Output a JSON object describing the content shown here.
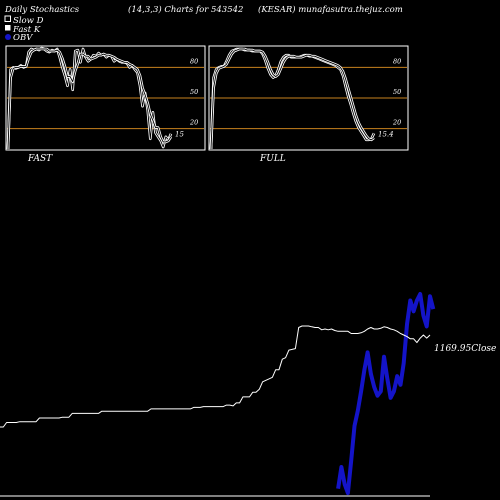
{
  "header": {
    "title": "Daily Stochastics",
    "params": "(14,3,3) Charts for 543542",
    "site": "(KESAR) munafasutra.thejuz.com"
  },
  "legend": {
    "slow_d": "Slow  D",
    "fast_k": "Fast K",
    "obv": "OBV"
  },
  "panels": {
    "fast": {
      "label": "FAST",
      "end_value": "15"
    },
    "full": {
      "label": "FULL",
      "end_value": "15.4"
    }
  },
  "price": {
    "close_label": "1169.95Close"
  },
  "colors": {
    "background": "#000000",
    "stoch_line": "#ffffff",
    "level_line": "#c8821e",
    "obv_line": "#1414c8",
    "price_line": "#ffffff"
  },
  "chart_data": [
    {
      "type": "line",
      "panel": "FAST",
      "ylim": [
        0,
        100
      ],
      "levels": [
        20,
        50,
        80
      ],
      "tick_labels": [
        "80",
        "50",
        "20"
      ],
      "series": [
        {
          "name": "Fast K",
          "values": [
            0,
            78,
            80,
            79,
            80,
            82,
            80,
            81,
            95,
            98,
            97,
            98,
            97,
            99,
            98,
            96,
            95,
            97,
            96,
            98,
            90,
            80,
            72,
            62,
            78,
            58,
            96,
            97,
            85,
            98,
            90,
            86,
            88,
            92,
            91,
            94,
            92,
            93,
            90,
            92,
            91,
            86,
            88,
            86,
            85,
            85,
            84,
            80,
            82,
            78,
            75,
            62,
            42,
            55,
            38,
            10,
            36,
            16,
            12,
            8,
            2,
            12,
            9,
            15
          ]
        },
        {
          "name": "Slow  D",
          "values": [
            0,
            70,
            79,
            80,
            80,
            81,
            81,
            81,
            89,
            95,
            97,
            98,
            98,
            98,
            98,
            98,
            96,
            96,
            96,
            97,
            95,
            89,
            81,
            71,
            71,
            66,
            77,
            84,
            93,
            93,
            91,
            91,
            88,
            89,
            90,
            92,
            92,
            93,
            92,
            92,
            91,
            90,
            88,
            87,
            86,
            85,
            85,
            83,
            82,
            80,
            78,
            72,
            60,
            53,
            45,
            34,
            28,
            21,
            21,
            12,
            7,
            7,
            8,
            12
          ]
        }
      ]
    },
    {
      "type": "line",
      "panel": "FULL",
      "ylim": [
        0,
        100
      ],
      "levels": [
        20,
        50,
        80
      ],
      "tick_labels": [
        "80",
        "50",
        "20"
      ],
      "series": [
        {
          "name": "Fast K",
          "values": [
            0,
            70,
            78,
            80,
            81,
            81,
            86,
            92,
            96,
            97,
            98,
            98,
            98,
            97,
            97,
            97,
            96,
            96,
            96,
            96,
            93,
            87,
            79,
            73,
            70,
            72,
            78,
            86,
            90,
            92,
            92,
            90,
            90,
            90,
            90,
            91,
            92,
            92,
            91,
            91,
            90,
            89,
            88,
            87,
            86,
            85,
            84,
            83,
            82,
            80,
            78,
            72,
            62,
            52,
            44,
            35,
            27,
            21,
            17,
            13,
            9,
            9,
            10,
            15.4
          ]
        },
        {
          "name": "Slow  D",
          "values": [
            0,
            60,
            74,
            79,
            80,
            81,
            83,
            88,
            93,
            96,
            97,
            98,
            98,
            98,
            97,
            97,
            97,
            96,
            96,
            96,
            95,
            91,
            85,
            78,
            73,
            71,
            73,
            79,
            85,
            89,
            91,
            91,
            91,
            90,
            90,
            90,
            91,
            92,
            92,
            91,
            91,
            90,
            89,
            88,
            87,
            86,
            85,
            84,
            83,
            82,
            80,
            76,
            69,
            60,
            51,
            42,
            33,
            26,
            21,
            17,
            13,
            10,
            9,
            11
          ]
        }
      ]
    },
    {
      "type": "line",
      "panel": "price-obv",
      "series": [
        {
          "name": "Price",
          "values": [
            1028,
            1028,
            1034,
            1034,
            1034,
            1034,
            1035,
            1035,
            1035,
            1035,
            1035,
            1035,
            1040,
            1040,
            1040,
            1040,
            1040,
            1040,
            1040,
            1041,
            1041,
            1041,
            1046,
            1046,
            1046,
            1046,
            1046,
            1046,
            1046,
            1046,
            1046,
            1049,
            1049,
            1049,
            1049,
            1049,
            1049,
            1049,
            1049,
            1049,
            1049,
            1049,
            1049,
            1049,
            1049,
            1049,
            1052,
            1052,
            1052,
            1052,
            1052,
            1052,
            1052,
            1052,
            1052,
            1052,
            1052,
            1052,
            1052,
            1054,
            1054,
            1054,
            1055,
            1055,
            1055,
            1055,
            1055,
            1055,
            1055,
            1057,
            1057,
            1056,
            1060,
            1060,
            1068,
            1068,
            1068,
            1074,
            1074,
            1078,
            1088,
            1090,
            1092,
            1094,
            1104,
            1104,
            1118,
            1120,
            1130,
            1131,
            1132,
            1160,
            1162,
            1162,
            1162,
            1161,
            1160,
            1160,
            1157,
            1158,
            1157,
            1158,
            1156,
            1155,
            1155,
            1155,
            1155,
            1152,
            1152,
            1152,
            1153,
            1155,
            1158,
            1160,
            1158,
            1158,
            1159,
            1161,
            1160,
            1158,
            1157,
            1155,
            1152,
            1150,
            1148,
            1145,
            1145,
            1140,
            1146,
            1150,
            1146,
            1150
          ]
        },
        {
          "name": "OBV",
          "values": [
            null,
            null,
            null,
            null,
            null,
            null,
            null,
            null,
            null,
            null,
            null,
            null,
            null,
            null,
            null,
            null,
            null,
            null,
            null,
            null,
            null,
            null,
            null,
            null,
            null,
            null,
            null,
            null,
            null,
            null,
            null,
            null,
            null,
            null,
            null,
            null,
            null,
            null,
            null,
            null,
            null,
            null,
            null,
            null,
            null,
            null,
            null,
            null,
            null,
            null,
            null,
            null,
            null,
            null,
            null,
            null,
            null,
            null,
            null,
            null,
            null,
            null,
            null,
            null,
            null,
            null,
            null,
            null,
            null,
            null,
            null,
            null,
            null,
            null,
            null,
            null,
            null,
            null,
            null,
            null,
            null,
            null,
            null,
            null,
            null,
            null,
            null,
            null,
            null,
            null,
            null,
            null,
            null,
            null,
            null,
            null,
            null,
            null,
            null,
            null,
            null,
            null,
            null,
            4,
            24,
            8,
            0,
            30,
            62,
            76,
            94,
            114,
            130,
            110,
            98,
            90,
            94,
            126,
            106,
            88,
            94,
            108,
            100,
            120,
            156,
            178,
            168,
            178,
            184,
            164,
            154,
            182,
            170
          ]
        }
      ]
    }
  ]
}
